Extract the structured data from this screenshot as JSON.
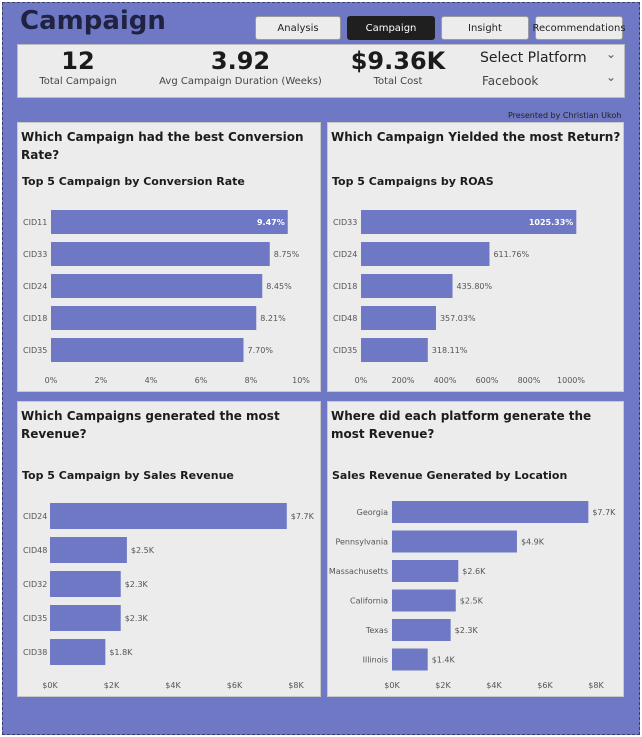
{
  "header": {
    "title": "Campaign",
    "nav": [
      {
        "label": "Analysis",
        "active": false
      },
      {
        "label": "Campaign",
        "active": true
      },
      {
        "label": "Insight",
        "active": false
      },
      {
        "label": "Recommendations",
        "active": false
      }
    ]
  },
  "kpis": [
    {
      "value": "12",
      "label": "Total Campaign"
    },
    {
      "value": "3.92",
      "label": "Avg Campaign Duration (Weeks)"
    },
    {
      "value": "$9.36K",
      "label": "Total Cost"
    }
  ],
  "slicer": {
    "title": "Select Platform",
    "value": "Facebook"
  },
  "presented_by": "Presented by Christian Ukoh",
  "colors": {
    "bar": "#6e78c4",
    "background": "#6e78c4",
    "panel": "#ececec"
  },
  "panels": [
    {
      "question": "Which Campaign had the best Conversion Rate?"
    },
    {
      "question": "Which Campaign Yielded the most Return?"
    },
    {
      "question": "Which Campaigns generated the most Revenue?"
    },
    {
      "question": "Where did each platform generate the most Revenue?"
    }
  ],
  "chart_data": [
    {
      "type": "bar",
      "orientation": "horizontal",
      "title": "Top 5 Campaign by Conversion Rate",
      "categories": [
        "CID11",
        "CID33",
        "CID24",
        "CID18",
        "CID35"
      ],
      "values": [
        9.47,
        8.75,
        8.45,
        8.21,
        7.7
      ],
      "data_labels": [
        "9.47%",
        "8.75%",
        "8.45%",
        "8.21%",
        "7.70%"
      ],
      "xlim": [
        0,
        10
      ],
      "ticks": [
        0,
        2,
        4,
        6,
        8,
        10
      ],
      "tick_labels": [
        "0%",
        "2%",
        "4%",
        "6%",
        "8%",
        "10%"
      ]
    },
    {
      "type": "bar",
      "orientation": "horizontal",
      "title": "Top 5 Campaigns by ROAS",
      "categories": [
        "CID33",
        "CID24",
        "CID18",
        "CID48",
        "CID35"
      ],
      "values": [
        1025.33,
        611.76,
        435.8,
        357.03,
        318.11
      ],
      "data_labels": [
        "1025.33%",
        "611.76%",
        "435.80%",
        "357.03%",
        "318.11%"
      ],
      "xlim": [
        0,
        1000
      ],
      "ticks": [
        0,
        200,
        400,
        600,
        800,
        1000
      ],
      "tick_labels": [
        "0%",
        "200%",
        "400%",
        "600%",
        "800%",
        "1000%"
      ]
    },
    {
      "type": "bar",
      "orientation": "horizontal",
      "title": "Top 5 Campaign by Sales Revenue",
      "categories": [
        "CID24",
        "CID48",
        "CID32",
        "CID35",
        "CID38"
      ],
      "values": [
        7700,
        2500,
        2300,
        2300,
        1800
      ],
      "data_labels": [
        "$7.7K",
        "$2.5K",
        "$2.3K",
        "$2.3K",
        "$1.8K"
      ],
      "xlim": [
        0,
        8000
      ],
      "ticks": [
        0,
        2000,
        4000,
        6000,
        8000
      ],
      "tick_labels": [
        "$0K",
        "$2K",
        "$4K",
        "$6K",
        "$8K"
      ]
    },
    {
      "type": "bar",
      "orientation": "horizontal",
      "title": "Sales Revenue Generated by Location",
      "categories": [
        "Georgia",
        "Pennsylvania",
        "Massachusetts",
        "California",
        "Texas",
        "Illinois"
      ],
      "values": [
        7700,
        4900,
        2600,
        2500,
        2300,
        1400
      ],
      "data_labels": [
        "$7.7K",
        "$4.9K",
        "$2.6K",
        "$2.5K",
        "$2.3K",
        "$1.4K"
      ],
      "xlim": [
        0,
        8000
      ],
      "ticks": [
        0,
        2000,
        4000,
        6000,
        8000
      ],
      "tick_labels": [
        "$0K",
        "$2K",
        "$4K",
        "$6K",
        "$8K"
      ]
    }
  ]
}
